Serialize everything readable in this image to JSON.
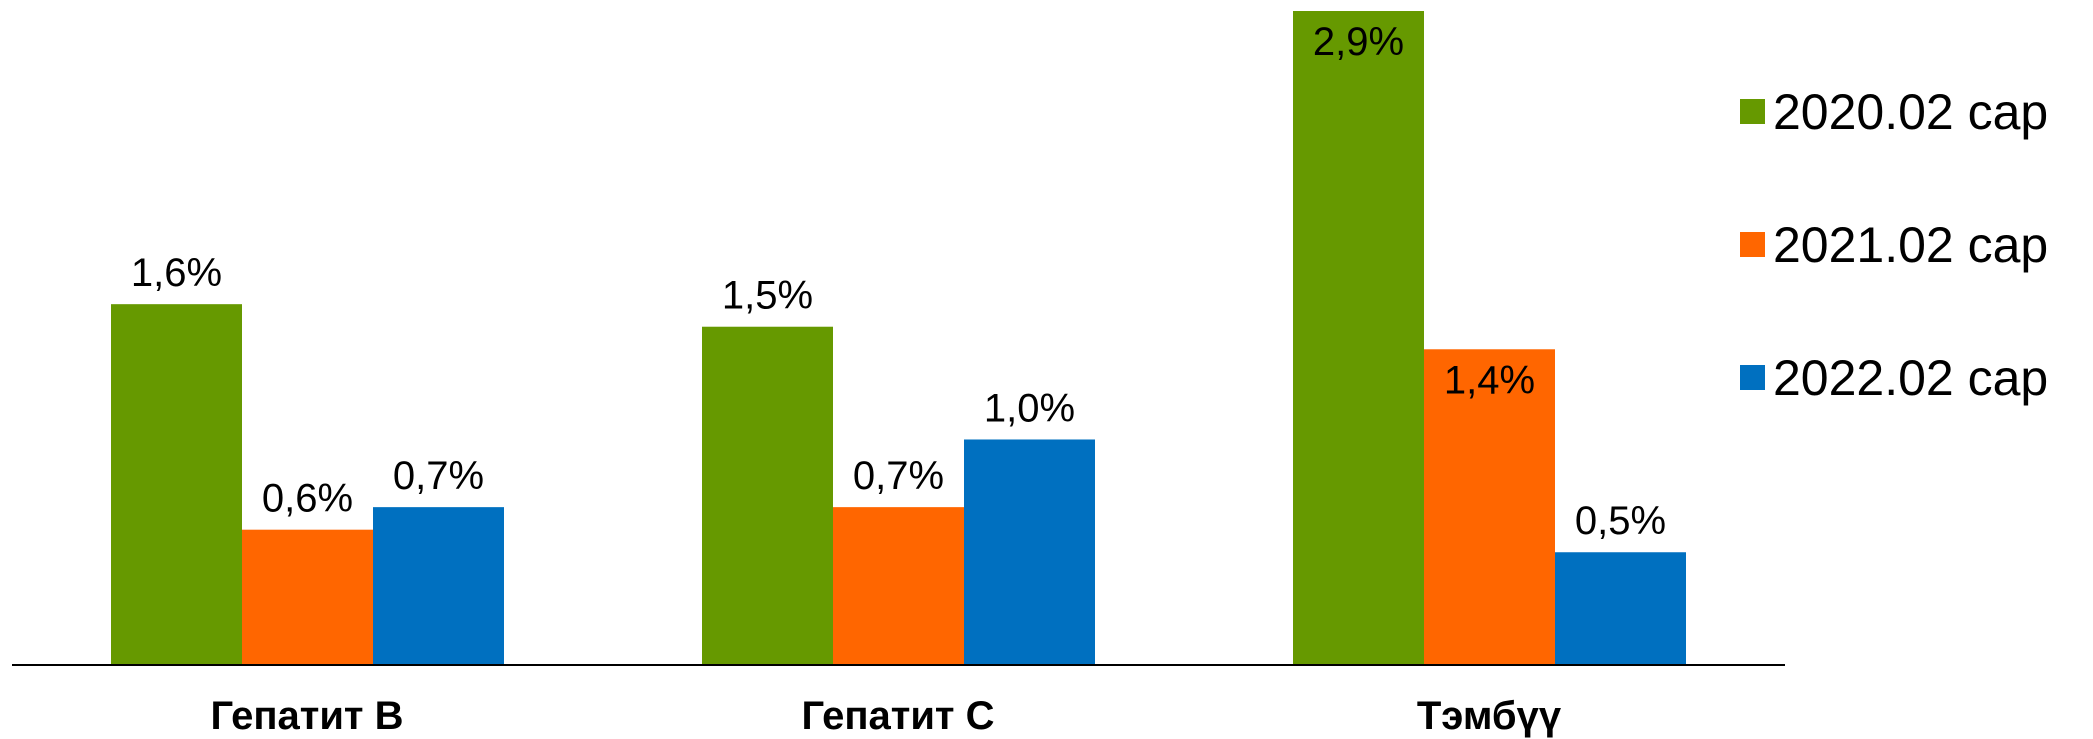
{
  "chart_data": {
    "type": "bar",
    "categories": [
      "Гепатит В",
      "Гепатит С",
      "Тэмбүү"
    ],
    "series": [
      {
        "name": "2020.02 сар",
        "color": "#669900",
        "values": [
          1.6,
          1.5,
          2.9
        ],
        "labels": [
          "1,6%",
          "1,5%",
          "2,9%"
        ]
      },
      {
        "name": "2021.02  сар",
        "color": "#ff6600",
        "values": [
          0.6,
          0.7,
          1.4
        ],
        "labels": [
          "0,6%",
          "0,7%",
          "1,4%"
        ]
      },
      {
        "name": "2022.02 сар",
        "color": "#0070c0",
        "values": [
          0.7,
          1.0,
          0.5
        ],
        "labels": [
          "0,7%",
          "1,0%",
          "0,5%"
        ]
      }
    ],
    "title": "",
    "xlabel": "",
    "ylabel": "",
    "ylim": [
      0,
      2.9
    ],
    "grid": false,
    "legend": "right"
  }
}
